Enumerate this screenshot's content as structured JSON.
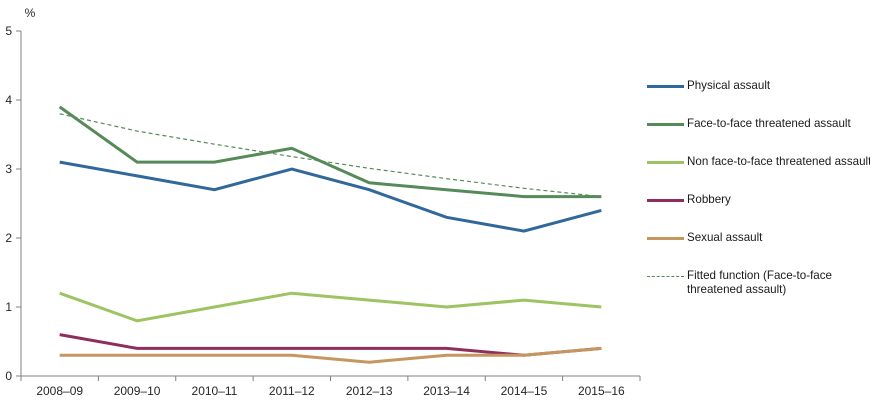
{
  "chart_data": {
    "type": "line",
    "title": "",
    "ylabel": "%",
    "xlabel": "",
    "ylim": [
      0,
      5
    ],
    "yticks": [
      0,
      1,
      2,
      3,
      4,
      5
    ],
    "grid": false,
    "legend_position": "right",
    "axis_color": "#808080",
    "text_color": "#262626",
    "categories": [
      "2008–09",
      "2009–10",
      "2010–11",
      "2011–12",
      "2012–13",
      "2013–14",
      "2014–15",
      "2015–16"
    ],
    "series": [
      {
        "name": "Physical assault",
        "color": "#31689b",
        "style": "solid",
        "values": [
          3.1,
          2.9,
          2.7,
          3.0,
          2.7,
          2.3,
          2.1,
          2.4
        ]
      },
      {
        "name": "Face-to-face threatened assault",
        "color": "#568a58",
        "style": "solid",
        "values": [
          3.9,
          3.1,
          3.1,
          3.3,
          2.8,
          2.7,
          2.6,
          2.6
        ]
      },
      {
        "name": "Non face-to-face threatened assault",
        "color": "#9dc362",
        "style": "solid",
        "values": [
          1.2,
          0.8,
          1.0,
          1.2,
          1.1,
          1.0,
          1.1,
          1.0
        ]
      },
      {
        "name": "Robbery",
        "color": "#8e2e5f",
        "style": "solid",
        "values": [
          0.6,
          0.4,
          0.4,
          0.4,
          0.4,
          0.4,
          0.3,
          0.4
        ]
      },
      {
        "name": "Sexual assault",
        "color": "#c6965f",
        "style": "solid",
        "values": [
          0.3,
          0.3,
          0.3,
          0.3,
          0.2,
          0.3,
          0.3,
          0.4
        ]
      },
      {
        "name": "Fitted function (Face-to-face threatened assault)",
        "color": "#568a58",
        "style": "dashed",
        "values": [
          3.8,
          3.55,
          3.36,
          3.18,
          3.01,
          2.86,
          2.72,
          2.6
        ]
      }
    ]
  }
}
